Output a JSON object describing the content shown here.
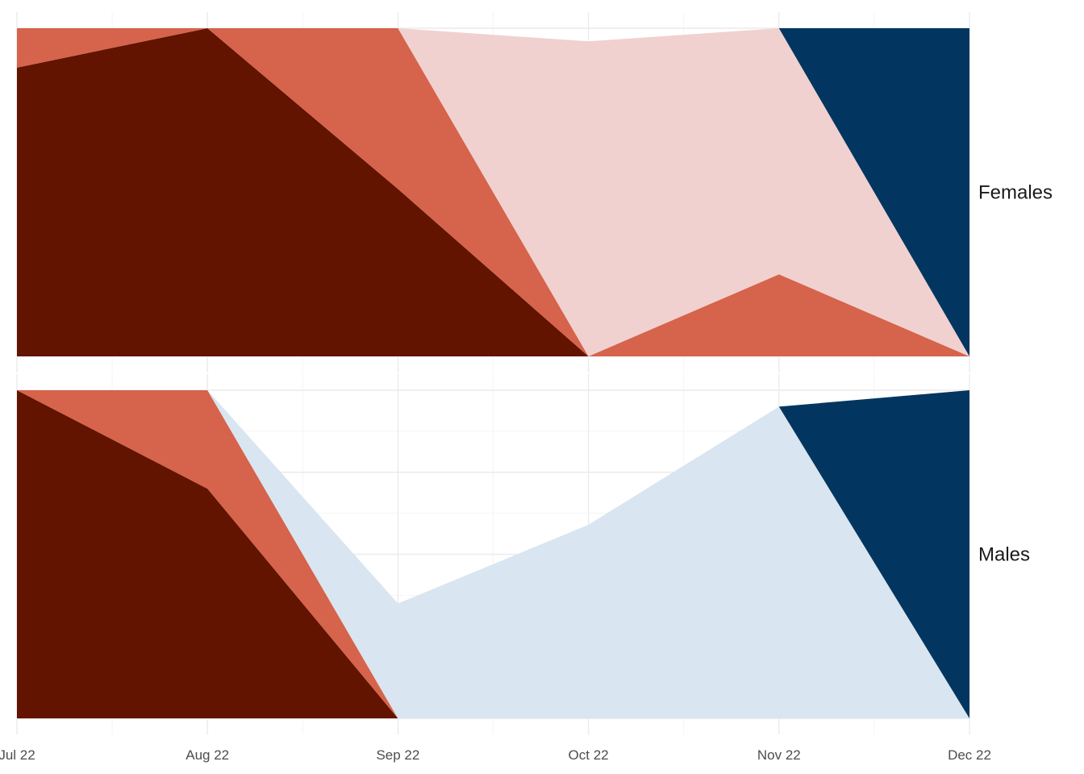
{
  "chart_data": {
    "type": "area",
    "stacking": "fill",
    "x_dates": [
      "2022-07",
      "2022-08",
      "2022-09",
      "2022-10",
      "2022-11",
      "2022-12"
    ],
    "x_tick_labels": [
      "Jul 22",
      "Aug 22",
      "Sep 22",
      "Oct 22",
      "Nov 22",
      "Dec 22"
    ],
    "ylim": [
      0,
      1
    ],
    "grid": true,
    "facet_position": "right",
    "colors": [
      "#621400",
      "#d6634b",
      "#f0d1cf",
      "#d9e5f0",
      "#023660"
    ],
    "panels": [
      {
        "label": "Females",
        "series": [
          {
            "color": "#621400",
            "values": [
              0.88,
              1.0,
              0.51,
              0.0,
              0.0,
              0.0
            ]
          },
          {
            "color": "#d6634b",
            "values": [
              0.12,
              0.0,
              0.49,
              0.0,
              0.25,
              0.0
            ]
          },
          {
            "color": "#f0d1cf",
            "values": [
              0.0,
              0.0,
              0.0,
              0.96,
              0.75,
              0.0
            ]
          },
          {
            "color": "#023660",
            "values": [
              0.0,
              0.0,
              0.0,
              0.0,
              0.0,
              1.0
            ]
          }
        ]
      },
      {
        "label": "Males",
        "series": [
          {
            "color": "#621400",
            "values": [
              1.0,
              0.7,
              0.0,
              0.0,
              0.0,
              0.0
            ]
          },
          {
            "color": "#d6634b",
            "values": [
              0.0,
              0.3,
              0.0,
              0.0,
              0.0,
              0.0
            ]
          },
          {
            "color": "#d9e5f0",
            "values": [
              0.0,
              0.0,
              0.35,
              0.59,
              0.95,
              0.0
            ]
          },
          {
            "color": "#023660",
            "values": [
              0.0,
              0.0,
              0.0,
              0.0,
              0.0,
              1.0
            ]
          }
        ]
      }
    ]
  }
}
